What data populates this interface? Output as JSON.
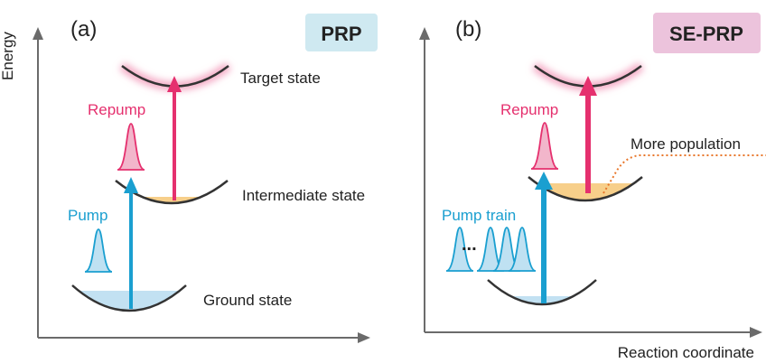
{
  "axes": {
    "y_label": "Energy",
    "x_label": "Reaction coordinate"
  },
  "panel_a": {
    "tag": "(a)",
    "badge": "PRP",
    "labels": {
      "target": "Target state",
      "intermediate": "Intermediate state",
      "ground": "Ground state",
      "repump": "Repump",
      "pump": "Pump"
    }
  },
  "panel_b": {
    "tag": "(b)",
    "badge": "SE-PRP",
    "labels": {
      "repump": "Repump",
      "pump_train": "Pump train",
      "ellipsis": "...",
      "more_population": "More population"
    }
  },
  "colors": {
    "pump": "#1a9fd0",
    "repump": "#e5306e",
    "badge_prp_bg": "#cfe9f1",
    "badge_seprp_bg": "#ecc3dc",
    "intermediate_fill": "#f7cf8a",
    "ground_fill": "#c2e1f2",
    "target_glow": "#f4a9c4",
    "axis": "#6b6b6b",
    "dotted_line": "#e8762a"
  },
  "icons": {
    "pump_pulse": "gaussian-pulse-icon",
    "repump_pulse": "gaussian-pulse-icon"
  }
}
